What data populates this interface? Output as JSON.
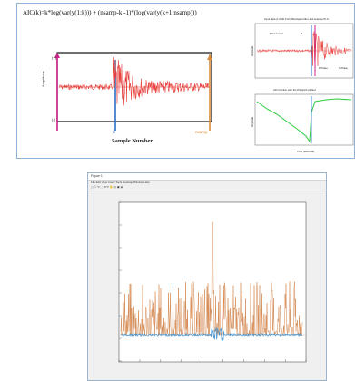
{
  "figure": {
    "formula": "AIC(k)=k*log(var(y(1:k))) + (nsamp-k -1)*(log(var(y(k+1:nsamp)))",
    "plus_label": "(+)",
    "minus_label": "(-)",
    "ylabel": "Amplitude",
    "k_label": "k",
    "nsamp_label": "nsamp",
    "xlabel": "Sample Number",
    "inset_top_title": "Input data (1.0-30.0 Hz) Bandpass filter and selected P-S",
    "inset_top_ylabel": "Amplitude",
    "inset_top_tag1": "Picked travel",
    "inset_top_tag2": "M",
    "inset_top_tag3": "P Phase",
    "inset_top_tag4": "S-Phase",
    "inset_bottom_title": "AIC function with the Pick/pick plotted",
    "inset_bottom_ylabel": "Amplitude",
    "inset_bottom_xlabel": "Time (seconds)"
  },
  "matlab_window": {
    "title": "Figure 1",
    "menu": "File  Edit  View  Insert  Tools  Desktop  Window  Help",
    "toolbar": "▢ ☐ ✎ ⬚  ⟲ ⟳ ✋ ◎  ▣ ▤"
  },
  "chart_data": {
    "type": "line",
    "series": [
      {
        "values": []
      },
      {
        "values": []
      }
    ]
  },
  "colors": {
    "signal_red": "#e8413c",
    "marker_magenta": "#cc2288",
    "marker_blue": "#2a6fc4",
    "aic_green": "#2ecc40",
    "pick_orange": "#d98b3a",
    "plot_orange": "#d4874e",
    "plot_blue": "#3a8fd0"
  }
}
